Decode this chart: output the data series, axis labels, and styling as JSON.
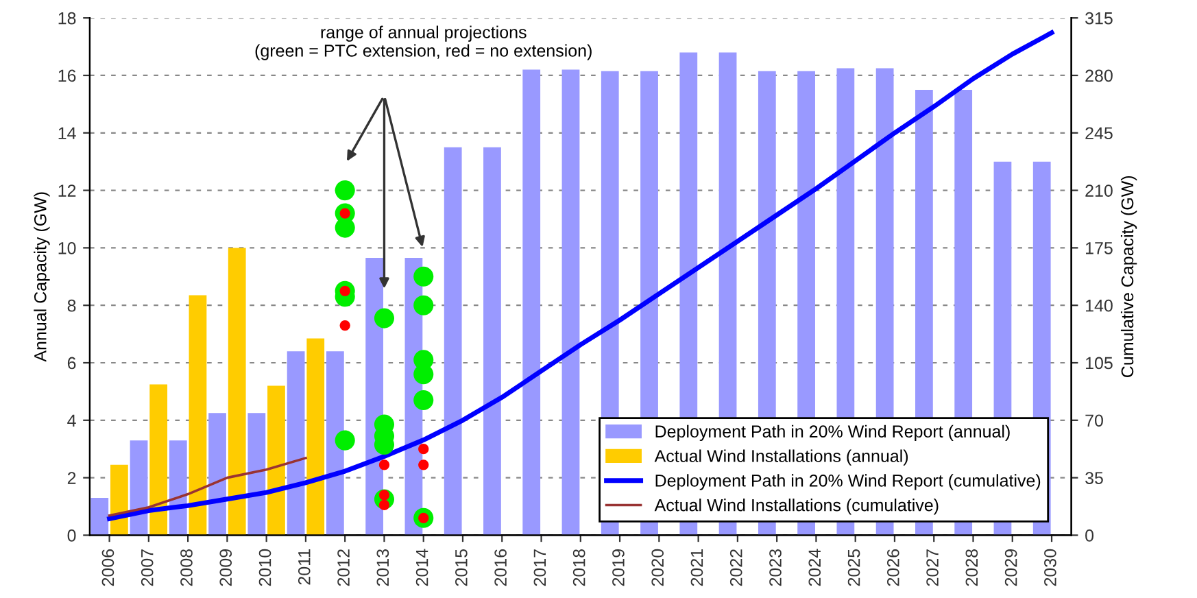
{
  "chart_data": {
    "type": "bar",
    "categories": [
      "2006",
      "2007",
      "2008",
      "2009",
      "2010",
      "2011",
      "2012",
      "2013",
      "2014",
      "2015",
      "2016",
      "2017",
      "2018",
      "2019",
      "2020",
      "2021",
      "2022",
      "2023",
      "2024",
      "2025",
      "2026",
      "2027",
      "2028",
      "2029",
      "2030"
    ],
    "series": [
      {
        "name": "Deployment Path in 20% Wind Report (annual)",
        "color": "#9999ff",
        "values": [
          1.3,
          3.3,
          3.3,
          4.25,
          4.25,
          6.4,
          6.4,
          9.65,
          9.65,
          13.5,
          13.5,
          16.2,
          16.2,
          16.15,
          16.15,
          16.8,
          16.8,
          16.15,
          16.15,
          16.25,
          16.25,
          15.5,
          15.5,
          13.0,
          13.0
        ]
      },
      {
        "name": "Actual Wind Installations (annual)",
        "color": "#ffcc00",
        "values": [
          2.45,
          5.25,
          8.35,
          10.0,
          5.2,
          6.85,
          null,
          null,
          null,
          null,
          null,
          null,
          null,
          null,
          null,
          null,
          null,
          null,
          null,
          null,
          null,
          null,
          null,
          null,
          null
        ]
      },
      {
        "name": "Deployment Path in 20% Wind Report (cumulative)",
        "type": "line",
        "axis": "y2",
        "color": "#0000ff",
        "values": [
          10,
          15,
          18,
          22,
          26,
          32,
          39,
          48,
          58,
          70,
          84,
          100,
          116,
          131,
          147,
          163,
          179,
          195,
          211,
          228,
          245,
          261,
          278,
          293,
          306
        ]
      },
      {
        "name": "Actual Wind Installations (cumulative)",
        "type": "line",
        "axis": "y2",
        "color": "#993333",
        "values": [
          12,
          17,
          25,
          35,
          40,
          47,
          null,
          null,
          null,
          null,
          null,
          null,
          null,
          null,
          null,
          null,
          null,
          null,
          null,
          null,
          null,
          null,
          null,
          null,
          null
        ]
      },
      {
        "type": "scatter",
        "color": "#00ee00",
        "marker": "circle",
        "values": [
          null,
          null,
          null,
          null,
          null,
          null,
          12.0,
          7.55,
          9.0,
          null,
          null,
          null,
          null,
          null,
          null,
          null,
          null,
          null,
          null,
          null,
          null,
          null,
          null,
          null,
          null
        ]
      },
      {
        "type": "scatter",
        "color": "#00ee00",
        "marker": "circle",
        "values": [
          null,
          null,
          null,
          null,
          null,
          null,
          11.2,
          3.85,
          8.0,
          null,
          null,
          null,
          null,
          null,
          null,
          null,
          null,
          null,
          null,
          null,
          null,
          null,
          null,
          null,
          null
        ]
      },
      {
        "type": "scatter",
        "color": "#00ee00",
        "marker": "circle",
        "values": [
          null,
          null,
          null,
          null,
          null,
          null,
          10.7,
          3.45,
          6.1,
          null,
          null,
          null,
          null,
          null,
          null,
          null,
          null,
          null,
          null,
          null,
          null,
          null,
          null,
          null,
          null
        ]
      },
      {
        "type": "scatter",
        "color": "#00ee00",
        "marker": "circle",
        "values": [
          null,
          null,
          null,
          null,
          null,
          null,
          8.5,
          3.15,
          5.6,
          null,
          null,
          null,
          null,
          null,
          null,
          null,
          null,
          null,
          null,
          null,
          null,
          null,
          null,
          null,
          null
        ]
      },
      {
        "type": "scatter",
        "color": "#00ee00",
        "marker": "circle",
        "values": [
          null,
          null,
          null,
          null,
          null,
          null,
          8.3,
          1.25,
          4.7,
          null,
          null,
          null,
          null,
          null,
          null,
          null,
          null,
          null,
          null,
          null,
          null,
          null,
          null,
          null,
          null
        ]
      },
      {
        "type": "scatter",
        "color": "#00ee00",
        "marker": "circle",
        "values": [
          null,
          null,
          null,
          null,
          null,
          null,
          3.3,
          null,
          0.6,
          null,
          null,
          null,
          null,
          null,
          null,
          null,
          null,
          null,
          null,
          null,
          null,
          null,
          null,
          null,
          null
        ]
      },
      {
        "type": "scatter",
        "color": "#ff0000",
        "marker": "circle",
        "values": [
          null,
          null,
          null,
          null,
          null,
          null,
          11.2,
          2.45,
          3.0,
          null,
          null,
          null,
          null,
          null,
          null,
          null,
          null,
          null,
          null,
          null,
          null,
          null,
          null,
          null,
          null
        ]
      },
      {
        "type": "scatter",
        "color": "#ff0000",
        "marker": "circle",
        "values": [
          null,
          null,
          null,
          null,
          null,
          null,
          8.5,
          1.4,
          2.45,
          null,
          null,
          null,
          null,
          null,
          null,
          null,
          null,
          null,
          null,
          null,
          null,
          null,
          null,
          null,
          null
        ]
      },
      {
        "type": "scatter",
        "color": "#ff0000",
        "marker": "circle",
        "values": [
          null,
          null,
          null,
          null,
          null,
          null,
          7.3,
          1.05,
          0.6,
          null,
          null,
          null,
          null,
          null,
          null,
          null,
          null,
          null,
          null,
          null,
          null,
          null,
          null,
          null,
          null
        ]
      }
    ],
    "ylabel": "Annual Capacity (GW)",
    "y2label": "Cumulative Capacity (GW)",
    "ylim": [
      0,
      18
    ],
    "yticks": [
      0,
      2,
      4,
      6,
      8,
      10,
      12,
      14,
      16,
      18
    ],
    "y2lim": [
      0,
      315
    ],
    "y2ticks": [
      0,
      35,
      70,
      105,
      140,
      175,
      210,
      245,
      280,
      315
    ],
    "annotations": [
      "range of annual projections\n(green = PTC extension, red = no extension)"
    ],
    "grid": "y",
    "legend": "bottom right"
  }
}
